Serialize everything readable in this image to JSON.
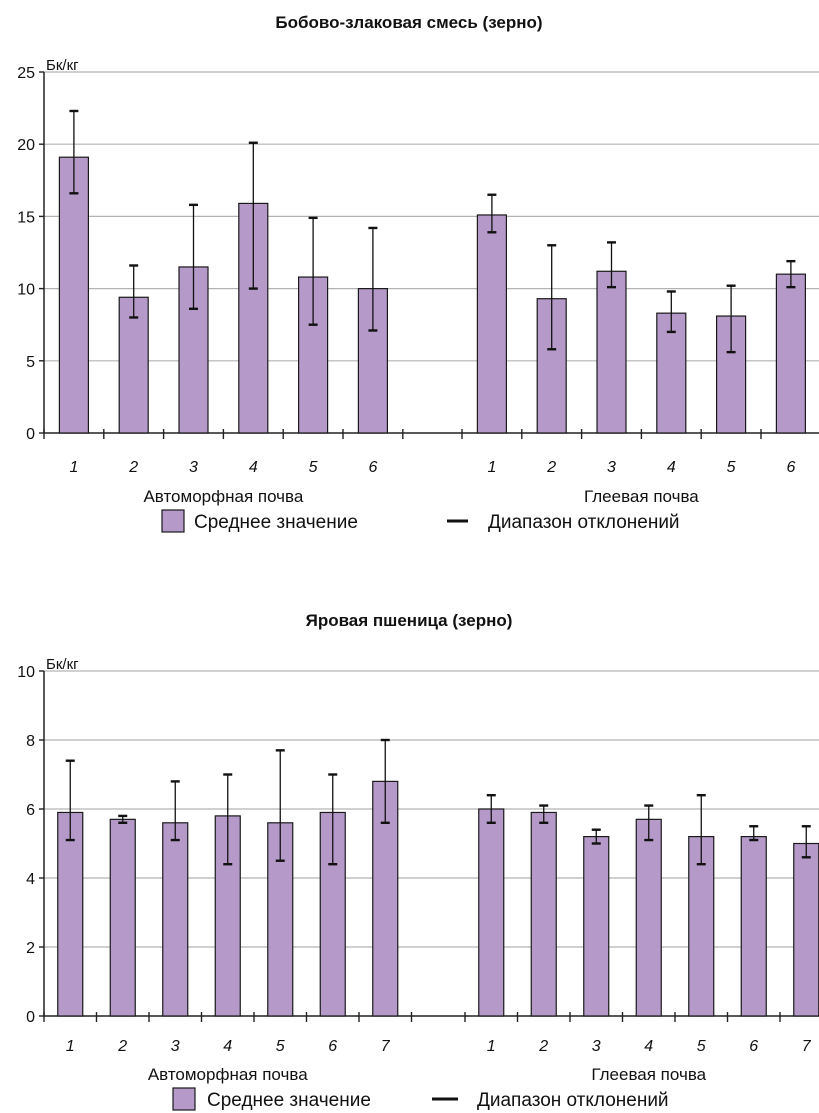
{
  "chart_data": [
    {
      "type": "bar",
      "title": "Бобово-злаковая смесь (зерно)",
      "ylabel": "Бк/кг",
      "ylim": [
        0,
        25
      ],
      "yticks": [
        0,
        5,
        10,
        15,
        20,
        25
      ],
      "grid": true,
      "legend_position": "bottom",
      "bar_color": "#b59ac9",
      "groups": [
        {
          "label": "Автоморфная почва",
          "categories": [
            "1",
            "2",
            "3",
            "4",
            "5",
            "6"
          ],
          "values": [
            19.1,
            9.4,
            11.5,
            15.9,
            10.8,
            10.0
          ],
          "err_low": [
            16.6,
            8.0,
            8.6,
            10.0,
            7.5,
            7.1
          ],
          "err_high": [
            22.3,
            11.6,
            15.8,
            20.1,
            14.9,
            14.2
          ]
        },
        {
          "label": "Глеевая почва",
          "categories": [
            "1",
            "2",
            "3",
            "4",
            "5",
            "6"
          ],
          "values": [
            15.1,
            9.3,
            11.2,
            8.3,
            8.1,
            11.0
          ],
          "err_low": [
            13.9,
            5.8,
            10.1,
            7.0,
            5.6,
            10.1
          ],
          "err_high": [
            16.5,
            13.0,
            13.2,
            9.8,
            10.2,
            11.9
          ]
        }
      ],
      "legend": [
        "Среднее значение",
        "Диапазон отклонений"
      ]
    },
    {
      "type": "bar",
      "title": "Яровая пшеница (зерно)",
      "ylabel": "Бк/кг",
      "ylim": [
        0,
        10
      ],
      "yticks": [
        0,
        2,
        4,
        6,
        8,
        10
      ],
      "grid": true,
      "legend_position": "bottom",
      "bar_color": "#b59ac9",
      "groups": [
        {
          "label": "Автоморфная почва",
          "categories": [
            "1",
            "2",
            "3",
            "4",
            "5",
            "6",
            "7"
          ],
          "values": [
            5.9,
            5.7,
            5.6,
            5.8,
            5.6,
            5.9,
            6.8
          ],
          "err_low": [
            5.1,
            5.6,
            5.1,
            4.4,
            4.5,
            4.4,
            5.6
          ],
          "err_high": [
            7.4,
            5.8,
            6.8,
            7.0,
            7.7,
            7.0,
            8.0
          ]
        },
        {
          "label": "Глеевая почва",
          "categories": [
            "1",
            "2",
            "3",
            "4",
            "5",
            "6",
            "7"
          ],
          "values": [
            6.0,
            5.9,
            5.2,
            5.7,
            5.2,
            5.2,
            5.0
          ],
          "err_low": [
            5.6,
            5.6,
            5.0,
            5.1,
            4.4,
            5.1,
            4.6
          ],
          "err_high": [
            6.4,
            6.1,
            5.4,
            6.1,
            6.4,
            5.5,
            5.5
          ]
        }
      ],
      "legend": [
        "Среднее значение",
        "Диапазон отклонений"
      ]
    }
  ]
}
